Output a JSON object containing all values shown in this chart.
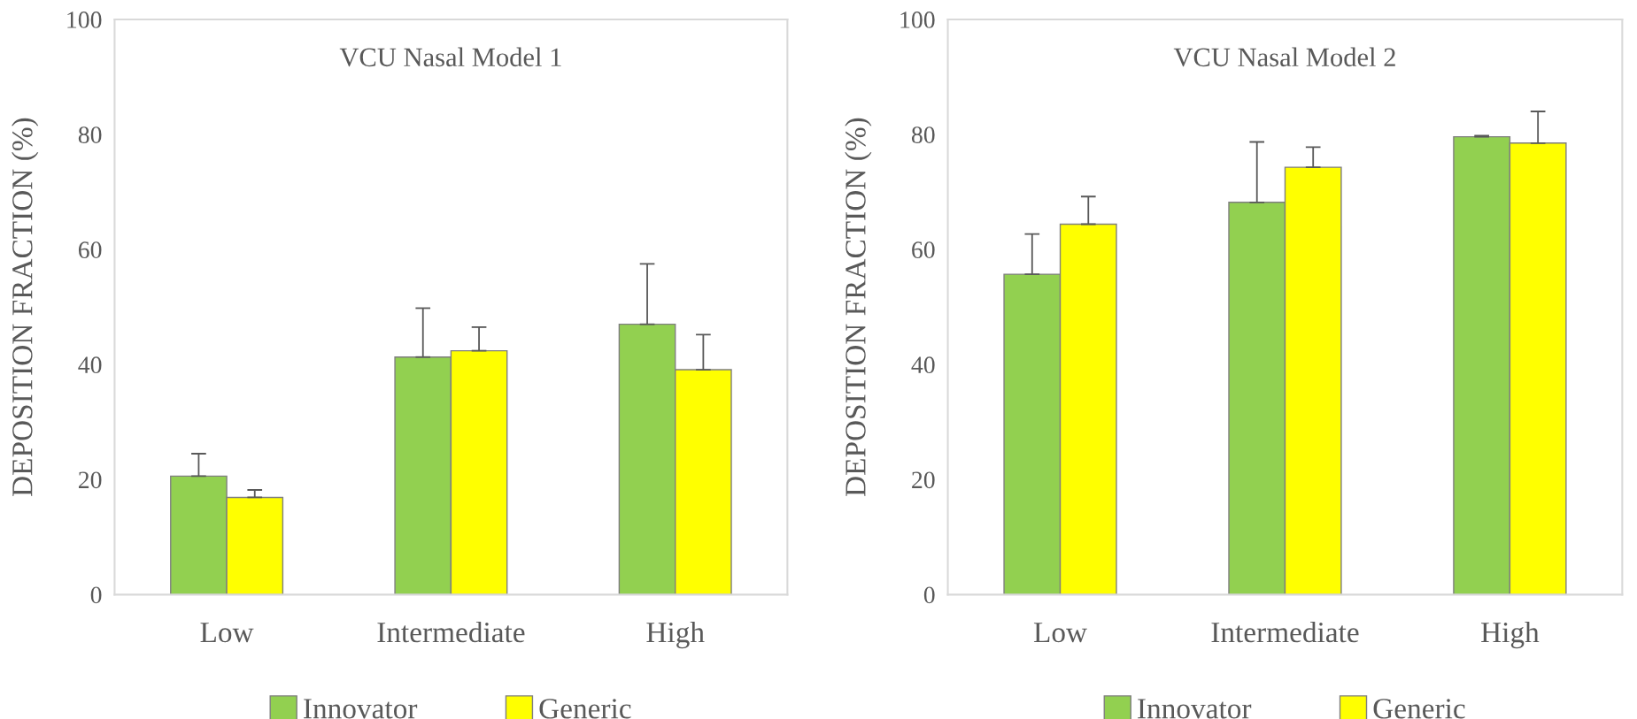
{
  "chart_data": [
    {
      "type": "bar",
      "title": "VCU Nasal Model 1",
      "ylabel": "DEPOSITION FRACTION (%)",
      "categories": [
        "Low",
        "Intermediate",
        "High"
      ],
      "series": [
        {
          "name": "Innovator",
          "color": "#92d050",
          "values": [
            20.6,
            41.3,
            47.0
          ],
          "errors": [
            [
              20.6,
              24.5
            ],
            [
              41.3,
              49.8
            ],
            [
              47.0,
              57.5
            ]
          ]
        },
        {
          "name": "Generic",
          "color": "#ffff00",
          "values": [
            16.9,
            42.4,
            39.1
          ],
          "errors": [
            [
              16.9,
              18.2
            ],
            [
              42.4,
              46.5
            ],
            [
              39.1,
              45.2
            ]
          ]
        }
      ],
      "ylim": [
        0,
        100
      ],
      "yticks": [
        0,
        20,
        40,
        60,
        80,
        100
      ],
      "grid": false,
      "legend": "bottom"
    },
    {
      "type": "bar",
      "title": "VCU Nasal Model 2",
      "ylabel": "DEPOSITION FRACTION (%)",
      "categories": [
        "Low",
        "Intermediate",
        "High"
      ],
      "series": [
        {
          "name": "Innovator",
          "color": "#92d050",
          "values": [
            55.7,
            68.2,
            79.6
          ],
          "errors": [
            [
              55.7,
              62.7
            ],
            [
              68.2,
              78.7
            ],
            [
              79.6,
              79.8
            ]
          ]
        },
        {
          "name": "Generic",
          "color": "#ffff00",
          "values": [
            64.4,
            74.3,
            78.5
          ],
          "errors": [
            [
              64.4,
              69.2
            ],
            [
              74.3,
              77.8
            ],
            [
              78.5,
              84.0
            ]
          ]
        }
      ],
      "ylim": [
        0,
        100
      ],
      "yticks": [
        0,
        20,
        40,
        60,
        80,
        100
      ],
      "grid": false,
      "legend": "bottom"
    }
  ]
}
